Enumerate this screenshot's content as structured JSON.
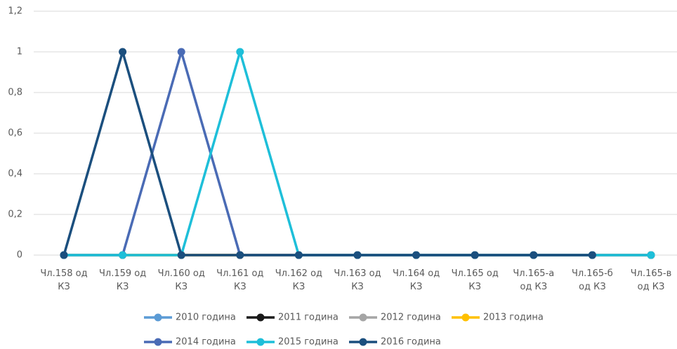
{
  "chart_data": {
    "type": "line",
    "categories": [
      "Чл.158 од\nКЗ",
      "Чл.159 од\nКЗ",
      "Чл.160 од\nКЗ",
      "Чл.161 од\nКЗ",
      "Чл.162 од\nКЗ",
      "Чл.163 од\nКЗ",
      "Чл.164 од\nКЗ",
      "Чл.165 од\nКЗ",
      "Чл.165-а\nод КЗ",
      "Чл.165-б\nод КЗ",
      "Чл.165-в\nод КЗ"
    ],
    "series": [
      {
        "name": "2010 година",
        "color": "#5b9bd5",
        "values": [
          0,
          0,
          0,
          0,
          0,
          0,
          0,
          0,
          0,
          0,
          0
        ]
      },
      {
        "name": "2011 година",
        "color": "#1a1a1a",
        "values": [
          0,
          0,
          0,
          0,
          0,
          0,
          0,
          0,
          0,
          0,
          0
        ]
      },
      {
        "name": "2012 година",
        "color": "#a5a5a5",
        "values": [
          0,
          0,
          0,
          0,
          0,
          0,
          0,
          0,
          0,
          0,
          0
        ]
      },
      {
        "name": "2013 година",
        "color": "#ffc000",
        "values": [
          0,
          0,
          0,
          0,
          0,
          0,
          0,
          0,
          0,
          0,
          0
        ]
      },
      {
        "name": "2014 година",
        "color": "#4a6bb5",
        "values": [
          0,
          0,
          1,
          0,
          0,
          0,
          0,
          0,
          0,
          0,
          0
        ]
      },
      {
        "name": "2015 година",
        "color": "#1ebfd9",
        "values": [
          0,
          0,
          0,
          1,
          0,
          0,
          0,
          0,
          0,
          0,
          0
        ]
      },
      {
        "name": "2016 година",
        "color": "#1b4f7e",
        "values": [
          0,
          1,
          0,
          0,
          0,
          0,
          0,
          0,
          0,
          0,
          null
        ]
      }
    ],
    "ylim": [
      0,
      1.2
    ],
    "yticks": [
      0,
      {
        "value": 0.2,
        "label": "0,2"
      },
      {
        "value": 0.4,
        "label": "0,4"
      },
      {
        "value": 0.6,
        "label": "0,6"
      },
      {
        "value": 0.8,
        "label": "0,8"
      },
      1,
      {
        "value": 1.2,
        "label": "1,2"
      }
    ],
    "grid": true
  }
}
